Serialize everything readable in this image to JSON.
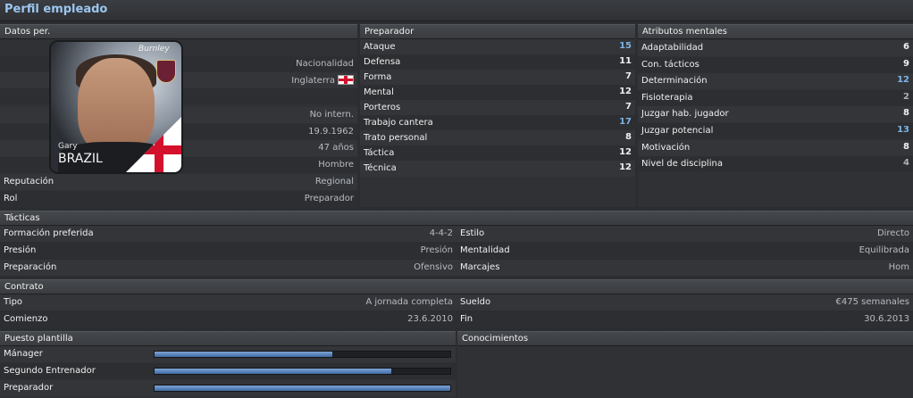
{
  "page": {
    "title": "Perfil empleado"
  },
  "personal": {
    "header": "Datos per.",
    "photo": {
      "first_name": "Gary",
      "last_name": "BRAZIL",
      "badge_text": "Burnley"
    },
    "values": [
      "Nacionalidad",
      "Inglaterra",
      "No intern.",
      "19.9.1962",
      "47 años",
      "Hombre"
    ],
    "reputation": {
      "label": "Reputación",
      "value": "Regional"
    },
    "role": {
      "label": "Rol",
      "value": "Preparador"
    }
  },
  "coaching": {
    "header": "Preparador",
    "items": [
      {
        "label": "Ataque",
        "value": "15",
        "color": "blue"
      },
      {
        "label": "Defensa",
        "value": "11",
        "color": "white"
      },
      {
        "label": "Forma",
        "value": "7",
        "color": "white"
      },
      {
        "label": "Mental",
        "value": "12",
        "color": "white"
      },
      {
        "label": "Porteros",
        "value": "7",
        "color": "white"
      },
      {
        "label": "Trabajo cantera",
        "value": "17",
        "color": "blue"
      },
      {
        "label": "Trato personal",
        "value": "8",
        "color": "white"
      },
      {
        "label": "Táctica",
        "value": "12",
        "color": "white"
      },
      {
        "label": "Técnica",
        "value": "12",
        "color": "white"
      }
    ]
  },
  "mental": {
    "header": "Atributos mentales",
    "items": [
      {
        "label": "Adaptabilidad",
        "value": "6",
        "color": "white"
      },
      {
        "label": "Con. tácticos",
        "value": "9",
        "color": "white"
      },
      {
        "label": "Determinación",
        "value": "12",
        "color": "blue"
      },
      {
        "label": "Fisioterapia",
        "value": "2",
        "color": "grey"
      },
      {
        "label": "Juzgar hab. jugador",
        "value": "8",
        "color": "white"
      },
      {
        "label": "Juzgar potencial",
        "value": "13",
        "color": "blue"
      },
      {
        "label": "Motivación",
        "value": "8",
        "color": "white"
      },
      {
        "label": "Nivel de disciplina",
        "value": "4",
        "color": "grey"
      }
    ]
  },
  "tactics": {
    "header": "Tácticas",
    "rows": [
      {
        "l1": "Formación preferida",
        "v1": "4-4-2",
        "l2": "Estilo",
        "v2": "Directo"
      },
      {
        "l1": "Presión",
        "v1": "Presión",
        "l2": "Mentalidad",
        "v2": "Equilibrada"
      },
      {
        "l1": "Preparación",
        "v1": "Ofensivo",
        "l2": "Marcajes",
        "v2": "Hom"
      }
    ]
  },
  "contract": {
    "header": "Contrato",
    "rows": [
      {
        "l1": "Tipo",
        "v1": "A jornada completa",
        "l2": "Sueldo",
        "v2": "€475 semanales"
      },
      {
        "l1": "Comienzo",
        "v1": "23.6.2010",
        "l2": "Fin",
        "v2": "30.6.2013"
      }
    ]
  },
  "squad_position": {
    "header": "Puesto plantilla",
    "bars": [
      {
        "label": "Mánager",
        "fill": 0.6
      },
      {
        "label": "Segundo Entrenador",
        "fill": 0.8
      },
      {
        "label": "Preparador",
        "fill": 1.0
      }
    ]
  },
  "knowledge": {
    "header": "Conocimientos"
  },
  "colors": {
    "blue": "#7fb3e6",
    "white": "#f0f0f0",
    "grey": "#aab0b6"
  }
}
